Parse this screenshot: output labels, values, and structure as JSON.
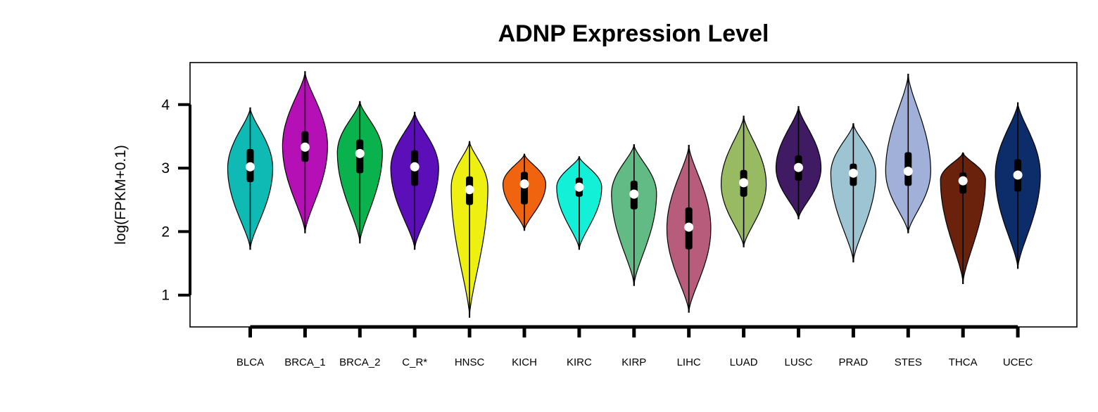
{
  "chart_data": {
    "type": "violin",
    "title": "ADNP Expression Level",
    "xlabel": "",
    "ylabel": "log(FPKM+0.1)",
    "ylim": [
      0.5,
      4.6
    ],
    "yticks": [
      1,
      2,
      3,
      4
    ],
    "grid": false,
    "legend": "none",
    "categories": [
      "BLCA",
      "BRCA_1",
      "BRCA_2",
      "C_R*",
      "HNSC",
      "KICH",
      "KIRC",
      "KIRP",
      "LIHC",
      "LUAD",
      "LUSC",
      "PRAD",
      "STES",
      "THCA",
      "UCEC"
    ],
    "series": [
      {
        "color": "#0fbab4",
        "min": 1.72,
        "max": 3.95,
        "q1": 2.78,
        "median": 3.02,
        "q3": 3.3,
        "mode": 3.0,
        "width": 0.8
      },
      {
        "color": "#b510b5",
        "min": 1.98,
        "max": 4.52,
        "q1": 3.1,
        "median": 3.33,
        "q3": 3.58,
        "mode": 3.35,
        "width": 0.8
      },
      {
        "color": "#0ab24e",
        "min": 1.82,
        "max": 4.05,
        "q1": 2.92,
        "median": 3.23,
        "q3": 3.45,
        "mode": 3.25,
        "width": 0.8
      },
      {
        "color": "#5c0fb8",
        "min": 1.72,
        "max": 3.88,
        "q1": 2.72,
        "median": 3.02,
        "q3": 3.28,
        "mode": 3.0,
        "width": 0.85
      },
      {
        "color": "#eef012",
        "min": 0.65,
        "max": 3.42,
        "q1": 2.42,
        "median": 2.66,
        "q3": 2.87,
        "mode": 2.7,
        "width": 0.65
      },
      {
        "color": "#f06410",
        "min": 2.02,
        "max": 3.22,
        "q1": 2.43,
        "median": 2.75,
        "q3": 2.94,
        "mode": 2.75,
        "width": 0.76
      },
      {
        "color": "#12f0d8",
        "min": 1.72,
        "max": 3.18,
        "q1": 2.55,
        "median": 2.7,
        "q3": 2.85,
        "mode": 2.7,
        "width": 0.8
      },
      {
        "color": "#62bb84",
        "min": 1.15,
        "max": 3.37,
        "q1": 2.35,
        "median": 2.59,
        "q3": 2.8,
        "mode": 2.6,
        "width": 0.8
      },
      {
        "color": "#b85c7c",
        "min": 0.73,
        "max": 3.36,
        "q1": 1.72,
        "median": 2.07,
        "q3": 2.38,
        "mode": 2.05,
        "width": 0.78
      },
      {
        "color": "#98ba62",
        "min": 1.76,
        "max": 3.82,
        "q1": 2.55,
        "median": 2.77,
        "q3": 2.97,
        "mode": 2.75,
        "width": 0.8
      },
      {
        "color": "#401a62",
        "min": 2.2,
        "max": 3.97,
        "q1": 2.8,
        "median": 3.01,
        "q3": 3.2,
        "mode": 3.0,
        "width": 0.8
      },
      {
        "color": "#9cc4d2",
        "min": 1.52,
        "max": 3.7,
        "q1": 2.72,
        "median": 2.92,
        "q3": 3.07,
        "mode": 2.92,
        "width": 0.8
      },
      {
        "color": "#a0b0d8",
        "min": 1.98,
        "max": 4.48,
        "q1": 2.72,
        "median": 2.95,
        "q3": 3.25,
        "mode": 2.95,
        "width": 0.8
      },
      {
        "color": "#6a220c",
        "min": 1.18,
        "max": 3.24,
        "q1": 2.6,
        "median": 2.8,
        "q3": 2.93,
        "mode": 2.82,
        "width": 0.8
      },
      {
        "color": "#0d2c6a",
        "min": 1.42,
        "max": 4.03,
        "q1": 2.63,
        "median": 2.89,
        "q3": 3.14,
        "mode": 2.9,
        "width": 0.8
      }
    ]
  }
}
